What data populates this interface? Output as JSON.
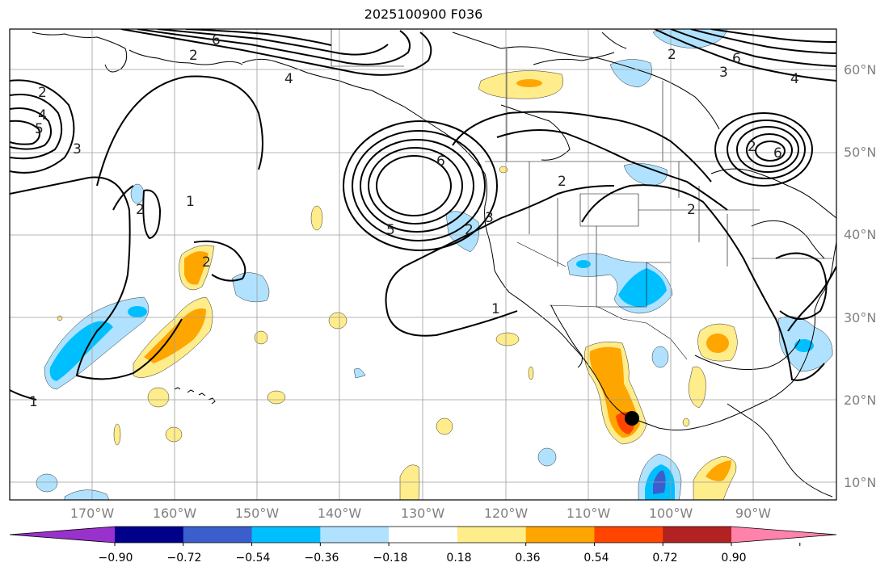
{
  "title": "2025100900 F036",
  "map": {
    "projection": "PlateCarree",
    "lon_range": [
      -180,
      -80
    ],
    "lat_range": [
      8,
      65
    ],
    "gridlines": true,
    "lon_labels": [
      "170°W",
      "160°W",
      "150°W",
      "140°W",
      "130°W",
      "120°W",
      "110°W",
      "100°W",
      "90°W"
    ],
    "lat_labels": [
      "60°N",
      "50°N",
      "40°N",
      "30°N",
      "20°N",
      "10°N"
    ],
    "contour_labels": [
      "6",
      "2",
      "4",
      "2",
      "4",
      "5",
      "3",
      "1",
      "2",
      "2",
      "6",
      "5",
      "2",
      "3",
      "1",
      "2",
      "6",
      "4",
      "2",
      "3",
      "6",
      "2",
      "1",
      "2"
    ],
    "marker": {
      "lon": -104.8,
      "lat": 17.8,
      "color": "#000000"
    }
  },
  "colorbar": {
    "ticks": [
      "−0.90",
      "−0.72",
      "−0.54",
      "−0.36",
      "−0.18",
      "0.18",
      "0.36",
      "0.54",
      "0.72",
      "0.90"
    ],
    "colors": [
      "#9932cc",
      "#00008b",
      "#3a5fcd",
      "#00bfff",
      "#b0e2ff",
      "#ffffff",
      "#ffec8b",
      "#ffa500",
      "#ff4500",
      "#b22222",
      "#ff82ab"
    ],
    "extend": "both"
  }
}
